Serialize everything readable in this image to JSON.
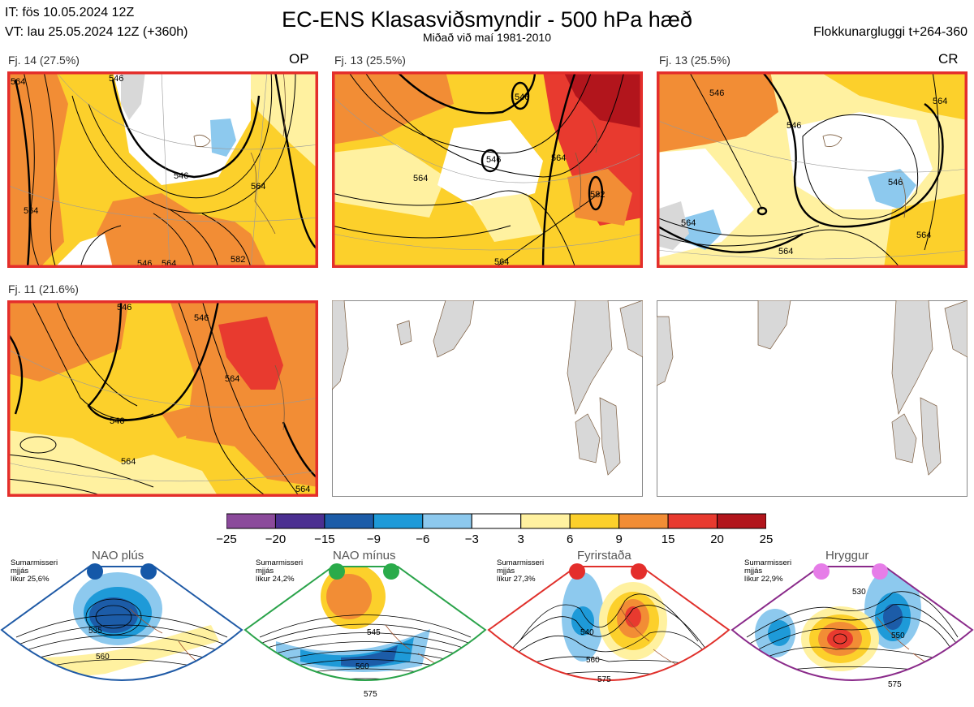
{
  "header": {
    "it_line": "IT: fös 10.05.2024 12Z",
    "vt_line": "VT: lau 25.05.2024 12Z  (+360h)",
    "title": "EC-ENS Klasasviðsmyndir - 500 hPa hæð",
    "subtitle": "Miðað við maí 1981-2010",
    "window": "Flokkunargluggi t+264-360"
  },
  "panels": [
    {
      "label": "Fj. 14 (27.5%)",
      "tag": "OP",
      "contours": [
        "564",
        "546",
        "546",
        "564",
        "564",
        "546",
        "564",
        "582"
      ]
    },
    {
      "label": "Fj. 13 (25.5%)",
      "tag": "",
      "contours": [
        "546",
        "546",
        "564",
        "564",
        "582",
        "564"
      ]
    },
    {
      "label": "Fj. 13 (25.5%)",
      "tag": "CR",
      "contours": [
        "546",
        "546",
        "564",
        "546",
        "564",
        "564",
        "564"
      ]
    },
    {
      "label": "Fj. 11 (21.6%)",
      "tag": "",
      "contours": [
        "546",
        "546",
        "546",
        "564",
        "564",
        "564"
      ]
    }
  ],
  "colorbar": {
    "ticks": [
      "−25",
      "−20",
      "−15",
      "−9",
      "−6",
      "−3",
      "3",
      "6",
      "9",
      "15",
      "20",
      "25"
    ],
    "colors": [
      "#8b4a9b",
      "#4b2f91",
      "#1c5ca8",
      "#1e9ad8",
      "#8dc9ee",
      "#ffffff",
      "#fff1a0",
      "#fcd02b",
      "#f28d35",
      "#e83a2f",
      "#b2151c"
    ]
  },
  "regimes": [
    {
      "name": "NAO plús",
      "note": [
        "Sumarmisseri",
        "mjjás",
        "líkur 25,6%"
      ],
      "frame_color": "#1f5aa6",
      "dot_color": "#1558a8",
      "contours": [
        "535",
        "560"
      ]
    },
    {
      "name": "NAO mínus",
      "note": [
        "Sumarmisseri",
        "mjjás",
        "líkur 24,2%"
      ],
      "frame_color": "#2aa34a",
      "dot_color": "#2aab4a",
      "contours": [
        "545",
        "560",
        "575"
      ]
    },
    {
      "name": "Fyrirstaða",
      "note": [
        "Sumarmisseri",
        "mjjás",
        "líkur 27,3%"
      ],
      "frame_color": "#e0302b",
      "dot_color": "#e42e2b",
      "contours": [
        "540",
        "560",
        "575"
      ]
    },
    {
      "name": "Hryggur",
      "note": [
        "Sumarmisseri",
        "mjjás",
        "líkur 22,9%"
      ],
      "frame_color": "#8a2a8a",
      "dot_color": "#e67de8",
      "contours": [
        "530",
        "550",
        "575"
      ]
    }
  ]
}
